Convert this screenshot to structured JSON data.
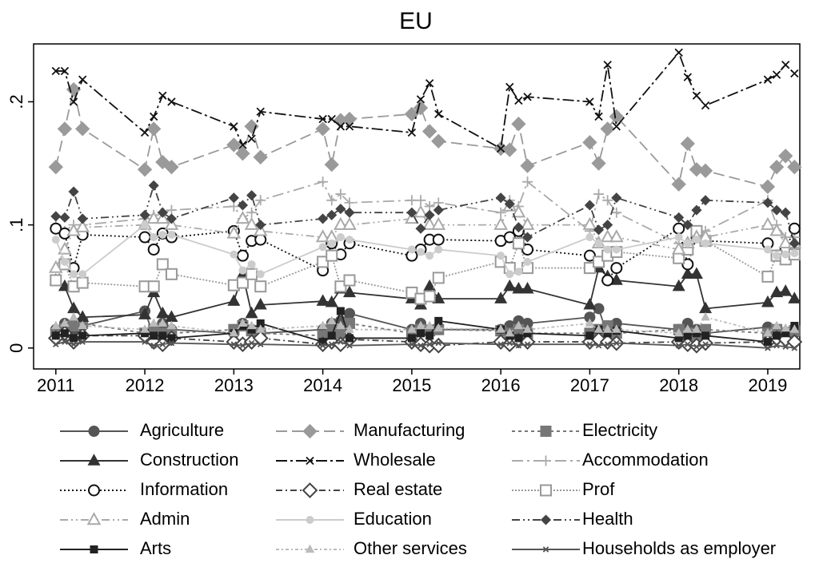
{
  "chart_data": {
    "type": "line",
    "title": "EU",
    "x": [
      2011,
      2011.1,
      2011.2,
      2011.3,
      2012,
      2012.1,
      2012.2,
      2012.3,
      2013,
      2013.1,
      2013.2,
      2013.3,
      2014,
      2014.1,
      2014.2,
      2014.3,
      2015,
      2015.1,
      2015.2,
      2015.3,
      2016,
      2016.1,
      2016.2,
      2016.3,
      2017,
      2017.1,
      2017.2,
      2017.3,
      2018,
      2018.1,
      2018.2,
      2018.3,
      2019,
      2019.1,
      2019.2,
      2019.3
    ],
    "xlim": [
      2010.75,
      2019.36
    ],
    "xticks": [
      2011,
      2012,
      2013,
      2014,
      2015,
      2016,
      2017,
      2018,
      2019
    ],
    "ylim": [
      -0.017,
      0.247
    ],
    "yticks": [
      0,
      {
        "value": 0.1,
        "label": ".1"
      },
      {
        "value": 0.2,
        "label": ".2"
      }
    ],
    "series": [
      {
        "name": "Agriculture",
        "color": "#555555",
        "values": [
          0.015,
          0.02,
          0.015,
          0.018,
          0.03,
          0.01,
          0.02,
          0.015,
          0.012,
          0.02,
          0.015,
          0.012,
          0.015,
          0.02,
          0.022,
          0.028,
          0.015,
          0.02,
          0.015,
          0.015,
          0.015,
          0.018,
          0.022,
          0.02,
          0.025,
          0.032,
          0.01,
          0.02,
          0.015,
          0.02,
          0.015,
          0.012,
          0.017,
          0.015,
          0.013,
          0.012
        ]
      },
      {
        "name": "Manufacturing",
        "color": "#9a9a9a",
        "values": [
          0.147,
          0.178,
          0.21,
          0.178,
          0.145,
          0.178,
          0.151,
          0.147,
          0.165,
          0.158,
          0.18,
          0.155,
          0.178,
          0.149,
          0.185,
          0.186,
          0.19,
          0.195,
          0.176,
          0.168,
          0.162,
          0.161,
          0.182,
          0.148,
          0.167,
          0.15,
          0.178,
          0.188,
          0.133,
          0.166,
          0.145,
          0.144,
          0.131,
          0.147,
          0.156,
          0.147
        ]
      },
      {
        "name": "Electricity",
        "color": "#777777",
        "values": [
          0.012,
          0.015,
          0.018,
          0.02,
          0.012,
          0.015,
          0.012,
          0.012,
          0.015,
          0.018,
          0.014,
          0.012,
          0.01,
          0.015,
          0.012,
          0.02,
          0.012,
          0.015,
          0.014,
          0.015,
          0.014,
          0.012,
          0.015,
          0.012,
          0.012,
          0.015,
          0.018,
          0.012,
          0.015,
          0.012,
          0.01,
          0.015,
          0.012,
          0.015,
          0.01,
          0.014
        ]
      },
      {
        "name": "Construction",
        "color": "#333333",
        "values": [
          0.055,
          0.05,
          0.032,
          0.025,
          0.027,
          0.045,
          0.028,
          0.025,
          0.038,
          0.06,
          0.028,
          0.035,
          0.038,
          0.037,
          0.048,
          0.045,
          0.04,
          0.035,
          0.05,
          0.04,
          0.04,
          0.05,
          0.048,
          0.048,
          0.035,
          0.065,
          0.058,
          0.055,
          0.05,
          0.06,
          0.06,
          0.032,
          0.037,
          0.045,
          0.046,
          0.04
        ]
      },
      {
        "name": "Wholesale",
        "color": "#111111",
        "values": [
          0.225,
          0.225,
          0.2,
          0.218,
          0.175,
          0.188,
          0.205,
          0.2,
          0.18,
          0.165,
          0.17,
          0.192,
          0.186,
          0.186,
          0.18,
          0.18,
          0.175,
          0.202,
          0.215,
          0.19,
          0.162,
          0.212,
          0.201,
          0.204,
          0.2,
          0.188,
          0.23,
          0.18,
          0.24,
          0.22,
          0.205,
          0.197,
          0.218,
          0.222,
          0.23,
          0.223
        ]
      },
      {
        "name": "Accommodation",
        "color": "#aaaaaa",
        "values": [
          0.1,
          0.095,
          0.1,
          0.1,
          0.105,
          0.108,
          0.11,
          0.112,
          0.115,
          0.105,
          0.11,
          0.12,
          0.135,
          0.12,
          0.125,
          0.118,
          0.12,
          0.12,
          0.115,
          0.118,
          0.11,
          0.12,
          0.115,
          0.135,
          0.095,
          0.125,
          0.12,
          0.11,
          0.085,
          0.085,
          0.09,
          0.095,
          0.12,
          0.1,
          0.09,
          0.09
        ]
      },
      {
        "name": "Information",
        "color": "#111111",
        "values": [
          0.097,
          0.093,
          0.065,
          0.092,
          0.09,
          0.08,
          0.093,
          0.09,
          0.095,
          0.075,
          0.087,
          0.088,
          0.063,
          0.085,
          0.076,
          0.085,
          0.075,
          0.08,
          0.088,
          0.088,
          0.087,
          0.09,
          0.095,
          0.08,
          0.075,
          0.07,
          0.055,
          0.065,
          0.097,
          0.068,
          0.09,
          0.087,
          0.085,
          0.075,
          0.08,
          0.097
        ]
      },
      {
        "name": "Real estate",
        "color": "#444444",
        "values": [
          0.008,
          0.012,
          0.005,
          0.01,
          0.01,
          0.005,
          0.003,
          0.008,
          0.005,
          0.003,
          0.005,
          0.008,
          0.003,
          0.005,
          0.003,
          0.007,
          0.005,
          0.003,
          0.002,
          0.002,
          0.005,
          0.003,
          0.006,
          0.005,
          0.005,
          0.007,
          0.005,
          0.004,
          0.005,
          0.003,
          0.002,
          0.004,
          0.005,
          0.008,
          0.007,
          0.005
        ]
      },
      {
        "name": "Prof",
        "color": "#999999",
        "values": [
          0.055,
          0.068,
          0.05,
          0.053,
          0.05,
          0.05,
          0.068,
          0.06,
          0.051,
          0.053,
          0.06,
          0.05,
          0.07,
          0.075,
          0.05,
          0.055,
          0.045,
          0.04,
          0.042,
          0.057,
          0.07,
          0.065,
          0.085,
          0.065,
          0.065,
          0.07,
          0.075,
          0.078,
          0.073,
          0.08,
          0.095,
          0.087,
          0.058,
          0.075,
          0.072,
          0.076
        ]
      },
      {
        "name": "Admin",
        "color": "#aaaaaa",
        "values": [
          0.065,
          0.08,
          0.095,
          0.098,
          0.1,
          0.105,
          0.105,
          0.1,
          0.093,
          0.105,
          0.1,
          0.095,
          0.09,
          0.09,
          0.1,
          0.1,
          0.105,
          0.11,
          0.1,
          0.1,
          0.1,
          0.115,
          0.11,
          0.1,
          0.1,
          0.085,
          0.09,
          0.09,
          0.08,
          0.085,
          0.09,
          0.09,
          0.1,
          0.095,
          0.085,
          0.085
        ]
      },
      {
        "name": "Education",
        "color": "#cccccc",
        "values": [
          0.088,
          0.07,
          0.06,
          0.06,
          0.1,
          0.09,
          0.092,
          0.092,
          0.076,
          0.063,
          0.068,
          0.06,
          0.082,
          0.085,
          0.09,
          0.088,
          0.08,
          0.078,
          0.075,
          0.08,
          0.075,
          0.06,
          0.062,
          0.07,
          0.09,
          0.085,
          0.08,
          0.08,
          0.09,
          0.085,
          0.088,
          0.085,
          0.08,
          0.075,
          0.076,
          0.077
        ]
      },
      {
        "name": "Health",
        "color": "#444444",
        "values": [
          0.107,
          0.106,
          0.127,
          0.105,
          0.108,
          0.132,
          0.11,
          0.105,
          0.122,
          0.116,
          0.124,
          0.1,
          0.105,
          0.108,
          0.113,
          0.11,
          0.11,
          0.097,
          0.108,
          0.112,
          0.122,
          0.117,
          0.098,
          0.09,
          0.116,
          0.096,
          0.1,
          0.122,
          0.106,
          0.1,
          0.112,
          0.12,
          0.118,
          0.112,
          0.11,
          0.085
        ]
      },
      {
        "name": "Arts",
        "color": "#222222",
        "values": [
          0.01,
          0.012,
          0.008,
          0.01,
          0.012,
          0.01,
          0.01,
          0.008,
          0.012,
          0.018,
          0.015,
          0.02,
          0.005,
          0.01,
          0.03,
          0.008,
          0.008,
          0.012,
          0.01,
          0.022,
          0.015,
          0.01,
          0.008,
          0.012,
          0.01,
          0.015,
          0.012,
          0.014,
          0.008,
          0.01,
          0.012,
          0.01,
          0.005,
          0.01,
          0.012,
          0.018
        ]
      },
      {
        "name": "Other services",
        "color": "#bbbbbb",
        "values": [
          0.018,
          0.02,
          0.025,
          0.018,
          0.015,
          0.02,
          0.02,
          0.018,
          0.012,
          0.02,
          0.018,
          0.015,
          0.018,
          0.022,
          0.018,
          0.015,
          0.015,
          0.018,
          0.018,
          0.016,
          0.015,
          0.012,
          0.018,
          0.015,
          0.02,
          0.015,
          0.015,
          0.015,
          0.012,
          0.015,
          0.015,
          0.025,
          0.012,
          0.018,
          0.016,
          0.015
        ]
      },
      {
        "name": "Households as employer",
        "color": "#555555",
        "values": [
          0.003,
          0.005,
          0.003,
          0.005,
          0.005,
          0.002,
          0.003,
          0.004,
          0.003,
          0.002,
          0.004,
          0.003,
          0.002,
          0.003,
          0.005,
          0.002,
          0.003,
          0.002,
          0.003,
          0.004,
          0.003,
          0.004,
          0.002,
          0.003,
          0.003,
          0.002,
          0.003,
          0.004,
          0.002,
          0.003,
          0.001,
          0.003,
          0,
          0.002,
          0.001,
          0
        ]
      }
    ]
  }
}
